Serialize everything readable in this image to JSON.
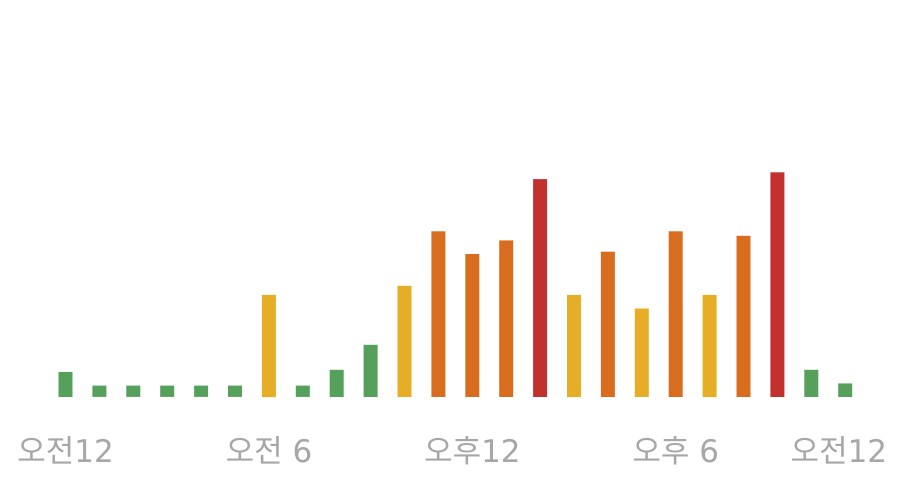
{
  "chart_data": {
    "type": "bar",
    "title": "",
    "xlabel": "",
    "ylabel": "",
    "ylim": [
      0,
      100
    ],
    "grid": false,
    "legend": "none",
    "x_tick_labels": [
      "오전12",
      "오전 6",
      "오후12",
      "오후 6",
      "오전12"
    ],
    "x_tick_hours": [
      0,
      6,
      12,
      18,
      24
    ],
    "hours": [
      0,
      1,
      2,
      3,
      4,
      5,
      6,
      7,
      8,
      9,
      10,
      11,
      12,
      13,
      14,
      15,
      16,
      17,
      18,
      19,
      20,
      21,
      22,
      23
    ],
    "values": [
      11,
      5,
      5,
      5,
      5,
      5,
      45,
      5,
      12,
      23,
      49,
      73,
      63,
      69,
      96,
      45,
      64,
      39,
      73,
      45,
      71,
      99,
      12,
      6
    ],
    "levels": [
      "low",
      "low",
      "low",
      "low",
      "low",
      "low",
      "medium",
      "low",
      "low",
      "low",
      "medium",
      "high",
      "high",
      "high",
      "very-high",
      "medium",
      "high",
      "medium",
      "high",
      "medium",
      "high",
      "very-high",
      "low",
      "low"
    ],
    "colors": {
      "low": "#55a05a",
      "medium": "#e6ae26",
      "high": "#d86d1f",
      "very-high": "#c2312e",
      "tick_label": "#a7a7a7"
    }
  }
}
